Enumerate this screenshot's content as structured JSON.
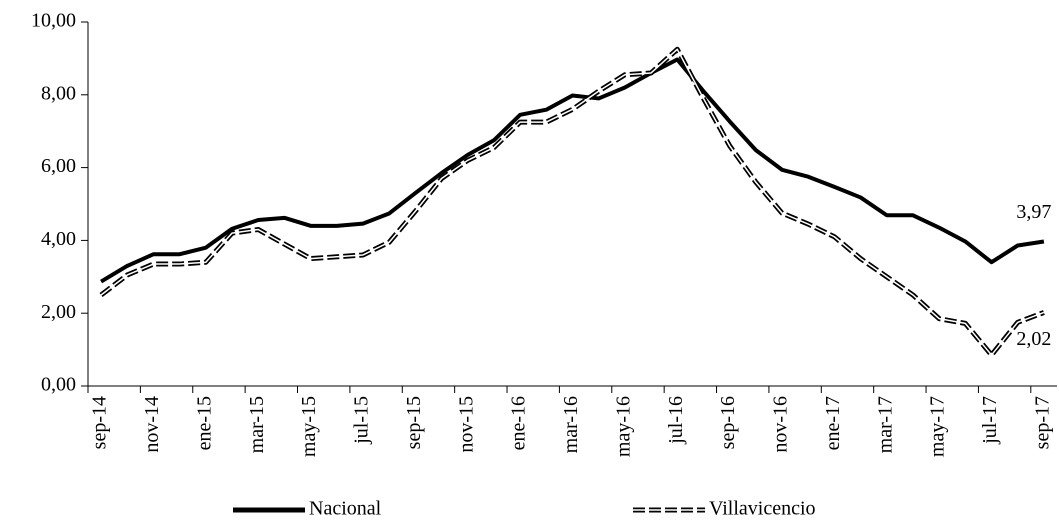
{
  "chart_data": {
    "type": "line",
    "categories": [
      "sep-14",
      null,
      "nov-14",
      null,
      "ene-15",
      null,
      "mar-15",
      null,
      "may-15",
      null,
      "jul-15",
      null,
      "sep-15",
      null,
      "nov-15",
      null,
      "ene-16",
      null,
      "mar-16",
      null,
      "may-16",
      null,
      "jul-16",
      null,
      "sep-16",
      null,
      "nov-16",
      null,
      "ene-17",
      null,
      "mar-17",
      null,
      "may-17",
      null,
      "jul-17",
      null,
      "sep-17"
    ],
    "series": [
      {
        "name": "Nacional",
        "color": "#000000",
        "style": "solid",
        "values": [
          2.87,
          3.3,
          3.62,
          3.62,
          3.8,
          4.32,
          4.56,
          4.62,
          4.4,
          4.4,
          4.46,
          4.74,
          5.3,
          5.85,
          6.35,
          6.75,
          7.45,
          7.59,
          7.98,
          7.9,
          8.2,
          8.6,
          8.97,
          8.1,
          7.27,
          6.48,
          5.94,
          5.75,
          5.47,
          5.18,
          4.69,
          4.69,
          4.35,
          3.97,
          3.4,
          3.86,
          3.97
        ],
        "value_labels": [
          null,
          null,
          null,
          null,
          null,
          null,
          null,
          null,
          null,
          null,
          null,
          null,
          null,
          null,
          null,
          null,
          null,
          null,
          null,
          null,
          null,
          null,
          null,
          null,
          null,
          null,
          null,
          null,
          null,
          null,
          null,
          null,
          null,
          null,
          null,
          null,
          "3,97"
        ]
      },
      {
        "name": "Villavicencio",
        "color": "#000000",
        "style": "double-dashed",
        "values": [
          2.5,
          3.05,
          3.35,
          3.35,
          3.4,
          4.2,
          4.3,
          3.9,
          3.5,
          3.55,
          3.6,
          3.95,
          4.8,
          5.7,
          6.2,
          6.55,
          7.25,
          7.25,
          7.6,
          8.1,
          8.55,
          8.6,
          9.25,
          7.9,
          6.6,
          5.6,
          4.75,
          4.45,
          4.1,
          3.5,
          3.0,
          2.5,
          1.85,
          1.72,
          0.85,
          1.75,
          2.02
        ],
        "value_labels": [
          null,
          null,
          null,
          null,
          null,
          null,
          null,
          null,
          null,
          null,
          null,
          null,
          null,
          null,
          null,
          null,
          null,
          null,
          null,
          null,
          null,
          null,
          null,
          null,
          null,
          null,
          null,
          null,
          null,
          null,
          null,
          null,
          null,
          null,
          null,
          null,
          "2,02"
        ]
      }
    ],
    "ylim": [
      0,
      10
    ],
    "yticks": [
      {
        "value": 0,
        "label": "0,00"
      },
      {
        "value": 2,
        "label": "2,00"
      },
      {
        "value": 4,
        "label": "4,00"
      },
      {
        "value": 6,
        "label": "6,00"
      },
      {
        "value": 8,
        "label": "8,00"
      },
      {
        "value": 10,
        "label": "10,00"
      }
    ],
    "grid": false,
    "legend": "bottom"
  }
}
